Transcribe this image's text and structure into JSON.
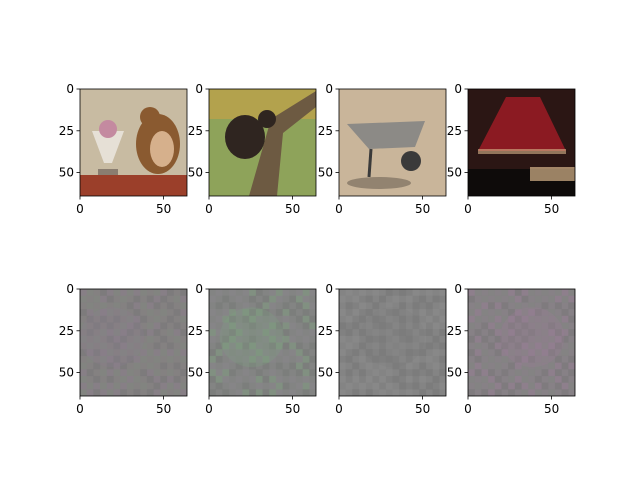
{
  "figure": {
    "type": "image-grid",
    "rows": 2,
    "cols": 4,
    "axis": {
      "x_range": [
        0,
        64
      ],
      "y_range": [
        0,
        64
      ],
      "x_ticks": [
        0,
        50
      ],
      "y_ticks": [
        0,
        25,
        50
      ],
      "grid": false
    },
    "panels": [
      {
        "row": 0,
        "col": 0,
        "subject": "squirrel-with-sundae",
        "palette": {
          "bg": "#c8bba2",
          "a": "#8a5a30",
          "b": "#d6b08c",
          "c": "#9b3f2a"
        }
      },
      {
        "row": 0,
        "col": 1,
        "subject": "bear-in-tree",
        "palette": {
          "bg": "#8ea35a",
          "a": "#2f2520",
          "b": "#6d5a42",
          "c": "#e1a23d"
        }
      },
      {
        "row": 0,
        "col": 2,
        "subject": "wheelbarrow-on-sand",
        "palette": {
          "bg": "#c9b59a",
          "a": "#3a3a3a",
          "b": "#b8a388",
          "c": "#6e6255"
        }
      },
      {
        "row": 0,
        "col": 3,
        "subject": "table-lamp-red-shade",
        "palette": {
          "bg": "#2b1614",
          "a": "#8b1a22",
          "b": "#d7b58a",
          "c": "#0e0b0a"
        }
      },
      {
        "row": 1,
        "col": 0,
        "subject": "noise-pattern-purple-tint",
        "palette": {
          "bg": "#858282",
          "a": "#8b7a8e",
          "b": "#7f8a7d",
          "c": "#6f6f72"
        }
      },
      {
        "row": 1,
        "col": 1,
        "subject": "noise-pattern-green-tint",
        "palette": {
          "bg": "#838583",
          "a": "#7da57e",
          "b": "#8c8790",
          "c": "#6f7470"
        }
      },
      {
        "row": 1,
        "col": 2,
        "subject": "noise-pattern-gray",
        "palette": {
          "bg": "#858585",
          "a": "#7a7a7a",
          "b": "#909090",
          "c": "#6e6e6e"
        }
      },
      {
        "row": 1,
        "col": 3,
        "subject": "noise-pattern-magenta-tint",
        "palette": {
          "bg": "#878286",
          "a": "#9a7a98",
          "b": "#7e867e",
          "c": "#707070"
        }
      }
    ],
    "colors": {
      "axis_spine": "#000000",
      "background": "#ffffff"
    }
  }
}
